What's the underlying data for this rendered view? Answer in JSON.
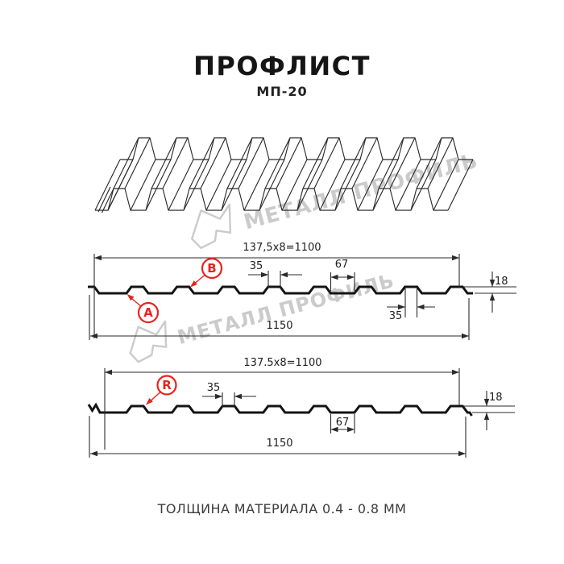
{
  "header": {
    "title": "ПРОФЛИСТ",
    "subtitle": "МП-20"
  },
  "footer": {
    "text": "ТОЛЩИНА МАТЕРИАЛА 0.4 - 0.8 ММ"
  },
  "watermark": {
    "text": "МЕТАЛЛ ПРОФИЛЬ"
  },
  "colors": {
    "accent_red": "#e8231d",
    "line_color": "#2a2a2a",
    "profile_color": "#141414",
    "watermark_color": "#cbcbcb",
    "background": "#ffffff"
  },
  "section1": {
    "marker_a": "A",
    "marker_b": "B",
    "dim_module": "137,5x8=1100",
    "dim_rib_top": "35",
    "dim_rib_bottom": "35",
    "dim_flat": "67",
    "dim_height": "18",
    "dim_total": "1150"
  },
  "section2": {
    "marker_r": "R",
    "dim_module": "137.5x8=1100",
    "dim_rib": "35",
    "dim_flat": "67",
    "dim_height": "18",
    "dim_total": "1150"
  }
}
